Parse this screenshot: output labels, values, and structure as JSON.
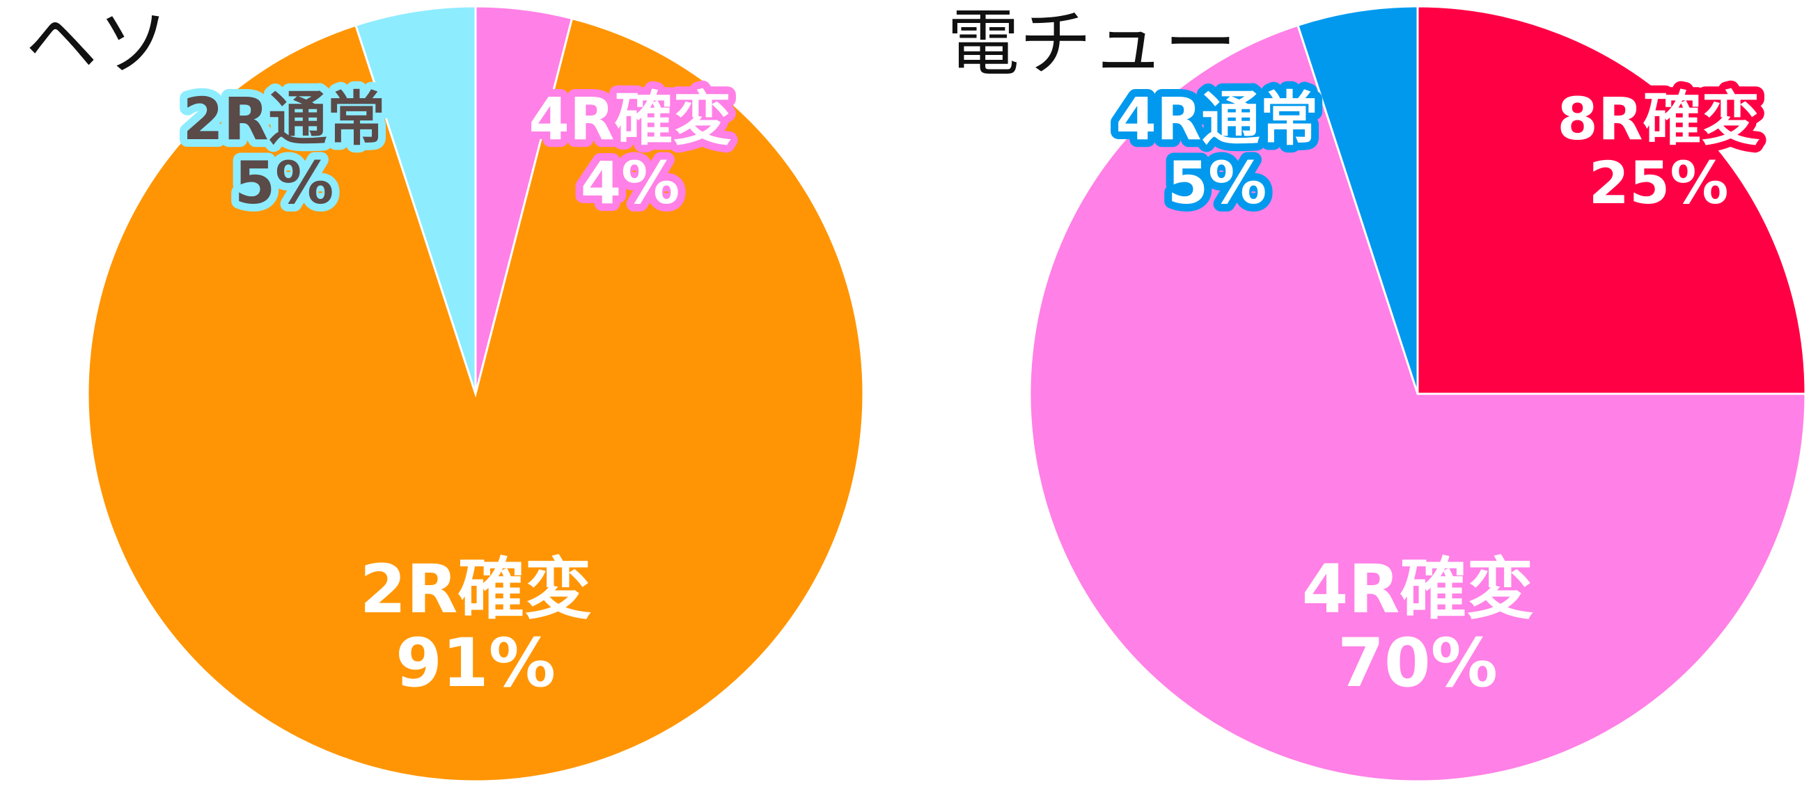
{
  "chart_data": [
    {
      "type": "pie",
      "title": "ヘソ",
      "slices": [
        {
          "label": "4R確変",
          "value": 4,
          "display": "4%",
          "color": "#ff80e6",
          "label_fill": "#ffffff",
          "label_stroke": "#ff80e6"
        },
        {
          "label": "2R確変",
          "value": 91,
          "display": "91%",
          "color": "#ff9504",
          "label_fill": "#ffffff",
          "label_stroke": "#ff9504"
        },
        {
          "label": "2R通常",
          "value": 5,
          "display": "5%",
          "color": "#8eecff",
          "label_fill": "#5a4a48",
          "label_stroke": "#8eecff"
        }
      ]
    },
    {
      "type": "pie",
      "title": "電チュー",
      "slices": [
        {
          "label": "8R確変",
          "value": 25,
          "display": "25%",
          "color": "#ff0044",
          "label_fill": "#ffffff",
          "label_stroke": "#ff0044"
        },
        {
          "label": "4R確変",
          "value": 70,
          "display": "70%",
          "color": "#ff80e6",
          "label_fill": "#ffffff",
          "label_stroke": "#ff80e6"
        },
        {
          "label": "4R通常",
          "value": 5,
          "display": "5%",
          "color": "#0099ee",
          "label_fill": "#ffffff",
          "label_stroke": "#0099ee"
        }
      ]
    }
  ]
}
